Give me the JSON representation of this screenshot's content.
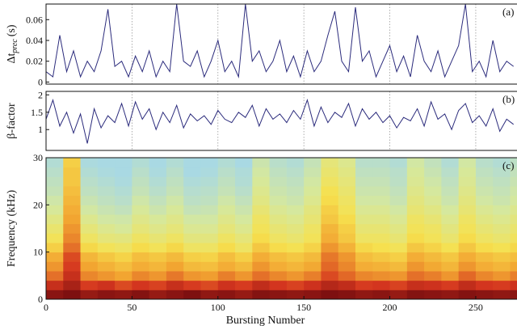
{
  "chart_data": [
    {
      "type": "line",
      "panel_label": "(a)",
      "y_label": "Δt",
      "y_label_sub": "prec",
      "y_label_unit": "(s)",
      "color": "#2b2b7c",
      "x": [
        0,
        4,
        8,
        12,
        16,
        20,
        24,
        28,
        32,
        36,
        40,
        44,
        48,
        52,
        56,
        60,
        64,
        68,
        72,
        76,
        80,
        84,
        88,
        92,
        96,
        100,
        104,
        108,
        112,
        116,
        120,
        124,
        128,
        132,
        136,
        140,
        144,
        148,
        152,
        156,
        160,
        164,
        168,
        172,
        176,
        180,
        184,
        188,
        192,
        196,
        200,
        204,
        208,
        212,
        216,
        220,
        224,
        228,
        232,
        236,
        240,
        244,
        248,
        252,
        256,
        260,
        264,
        268,
        272
      ],
      "values": [
        0.01,
        0.005,
        0.045,
        0.01,
        0.03,
        0.005,
        0.02,
        0.01,
        0.03,
        0.07,
        0.015,
        0.02,
        0.005,
        0.025,
        0.01,
        0.03,
        0.005,
        0.02,
        0.01,
        0.075,
        0.02,
        0.015,
        0.03,
        0.005,
        0.02,
        0.04,
        0.01,
        0.02,
        0.005,
        0.075,
        0.02,
        0.03,
        0.01,
        0.02,
        0.04,
        0.01,
        0.025,
        0.005,
        0.03,
        0.01,
        0.02,
        0.045,
        0.068,
        0.02,
        0.01,
        0.072,
        0.02,
        0.03,
        0.005,
        0.02,
        0.035,
        0.01,
        0.025,
        0.005,
        0.045,
        0.02,
        0.01,
        0.03,
        0.005,
        0.02,
        0.035,
        0.075,
        0.01,
        0.02,
        0.005,
        0.04,
        0.01,
        0.02,
        0.015
      ],
      "xlim": [
        0,
        274
      ],
      "ylim": [
        -0.002,
        0.075
      ],
      "yticks": [
        0,
        0.02,
        0.04,
        0.06
      ],
      "xticks": [
        50,
        100,
        150,
        200,
        250
      ],
      "x_grid": true
    },
    {
      "type": "line",
      "panel_label": "(b)",
      "y_label": "β-factor",
      "color": "#2b2b7c",
      "x": [
        0,
        4,
        8,
        12,
        16,
        20,
        24,
        28,
        32,
        36,
        40,
        44,
        48,
        52,
        56,
        60,
        64,
        68,
        72,
        76,
        80,
        84,
        88,
        92,
        96,
        100,
        104,
        108,
        112,
        116,
        120,
        124,
        128,
        132,
        136,
        140,
        144,
        148,
        152,
        156,
        160,
        164,
        168,
        172,
        176,
        180,
        184,
        188,
        192,
        196,
        200,
        204,
        208,
        212,
        216,
        220,
        224,
        228,
        232,
        236,
        240,
        244,
        248,
        252,
        256,
        260,
        264,
        268,
        272
      ],
      "values": [
        1.3,
        1.85,
        1.1,
        1.5,
        0.9,
        1.45,
        0.6,
        1.6,
        1.05,
        1.4,
        1.2,
        1.75,
        1.1,
        1.8,
        1.3,
        1.6,
        1.0,
        1.5,
        1.2,
        1.7,
        1.05,
        1.45,
        1.25,
        1.4,
        1.15,
        1.55,
        1.3,
        1.2,
        1.5,
        1.35,
        1.7,
        1.1,
        1.6,
        1.3,
        1.45,
        1.2,
        1.55,
        1.3,
        1.85,
        1.1,
        1.65,
        1.2,
        1.5,
        1.35,
        1.75,
        1.1,
        1.6,
        1.3,
        1.5,
        1.2,
        1.4,
        1.05,
        1.35,
        1.25,
        1.6,
        1.1,
        1.8,
        1.3,
        1.45,
        1.0,
        1.55,
        1.75,
        1.2,
        1.4,
        1.1,
        1.6,
        0.95,
        1.3,
        1.15
      ],
      "xlim": [
        0,
        274
      ],
      "ylim": [
        0.4,
        2.1
      ],
      "yticks": [
        1,
        1.5,
        2
      ],
      "xticks": [
        50,
        100,
        150,
        200,
        250
      ],
      "x_grid": true
    },
    {
      "type": "heatmap",
      "panel_label": "(c)",
      "y_label": "Frequency (kHz)",
      "x_label": "Bursting Number",
      "x_edges": [
        0,
        10,
        20,
        30,
        40,
        50,
        60,
        70,
        80,
        90,
        100,
        110,
        120,
        130,
        140,
        150,
        160,
        170,
        180,
        190,
        200,
        210,
        220,
        230,
        240,
        250,
        260,
        270,
        274
      ],
      "y_edges": [
        0,
        2,
        4,
        6,
        8,
        10,
        12,
        14,
        16,
        18,
        20,
        22,
        24,
        26,
        28,
        30
      ],
      "colormap": [
        "#a9d9e3",
        "#d6e89c",
        "#f6e14f",
        "#f2a431",
        "#d5361f",
        "#7e1010"
      ],
      "values": [
        [
          0.95,
          0.97,
          0.93,
          0.95,
          0.94,
          0.96,
          0.93,
          0.95,
          0.97,
          0.94,
          0.95,
          0.93,
          0.96,
          0.95,
          0.94,
          0.95,
          0.97,
          0.96,
          0.94,
          0.95,
          0.93,
          0.96,
          0.95,
          0.94,
          0.96,
          0.95,
          0.94,
          0.95
        ],
        [
          0.85,
          0.9,
          0.82,
          0.84,
          0.8,
          0.83,
          0.81,
          0.85,
          0.82,
          0.8,
          0.84,
          0.82,
          0.86,
          0.83,
          0.81,
          0.84,
          0.88,
          0.86,
          0.82,
          0.83,
          0.81,
          0.85,
          0.84,
          0.82,
          0.86,
          0.83,
          0.82,
          0.84
        ],
        [
          0.75,
          0.85,
          0.72,
          0.7,
          0.68,
          0.72,
          0.7,
          0.74,
          0.7,
          0.69,
          0.73,
          0.7,
          0.75,
          0.72,
          0.7,
          0.73,
          0.8,
          0.76,
          0.72,
          0.71,
          0.7,
          0.75,
          0.73,
          0.7,
          0.76,
          0.72,
          0.7,
          0.73
        ],
        [
          0.7,
          0.82,
          0.68,
          0.65,
          0.62,
          0.66,
          0.64,
          0.68,
          0.63,
          0.62,
          0.66,
          0.63,
          0.7,
          0.66,
          0.64,
          0.67,
          0.76,
          0.72,
          0.66,
          0.65,
          0.63,
          0.7,
          0.67,
          0.64,
          0.7,
          0.66,
          0.64,
          0.67
        ],
        [
          0.66,
          0.8,
          0.64,
          0.6,
          0.57,
          0.62,
          0.6,
          0.63,
          0.58,
          0.57,
          0.62,
          0.58,
          0.66,
          0.62,
          0.6,
          0.63,
          0.74,
          0.7,
          0.62,
          0.6,
          0.58,
          0.66,
          0.63,
          0.6,
          0.66,
          0.62,
          0.6,
          0.62
        ],
        [
          0.58,
          0.75,
          0.56,
          0.52,
          0.5,
          0.55,
          0.52,
          0.56,
          0.5,
          0.5,
          0.55,
          0.5,
          0.6,
          0.55,
          0.53,
          0.57,
          0.7,
          0.65,
          0.56,
          0.54,
          0.52,
          0.6,
          0.57,
          0.53,
          0.6,
          0.55,
          0.53,
          0.56
        ],
        [
          0.52,
          0.72,
          0.5,
          0.46,
          0.45,
          0.5,
          0.47,
          0.5,
          0.45,
          0.45,
          0.5,
          0.46,
          0.55,
          0.5,
          0.48,
          0.52,
          0.66,
          0.6,
          0.5,
          0.5,
          0.47,
          0.55,
          0.52,
          0.48,
          0.55,
          0.5,
          0.48,
          0.51
        ],
        [
          0.48,
          0.7,
          0.46,
          0.42,
          0.4,
          0.46,
          0.43,
          0.46,
          0.41,
          0.41,
          0.46,
          0.42,
          0.52,
          0.47,
          0.45,
          0.5,
          0.64,
          0.58,
          0.47,
          0.47,
          0.44,
          0.52,
          0.5,
          0.45,
          0.52,
          0.47,
          0.45,
          0.48
        ],
        [
          0.44,
          0.68,
          0.42,
          0.38,
          0.37,
          0.43,
          0.4,
          0.43,
          0.38,
          0.38,
          0.43,
          0.39,
          0.5,
          0.44,
          0.42,
          0.47,
          0.6,
          0.55,
          0.44,
          0.44,
          0.41,
          0.5,
          0.47,
          0.42,
          0.5,
          0.44,
          0.42,
          0.45
        ],
        [
          0.4,
          0.66,
          0.38,
          0.35,
          0.33,
          0.4,
          0.36,
          0.4,
          0.34,
          0.35,
          0.4,
          0.36,
          0.47,
          0.41,
          0.39,
          0.45,
          0.58,
          0.52,
          0.41,
          0.41,
          0.38,
          0.47,
          0.44,
          0.39,
          0.47,
          0.41,
          0.39,
          0.42
        ],
        [
          0.37,
          0.64,
          0.35,
          0.32,
          0.3,
          0.37,
          0.33,
          0.37,
          0.31,
          0.32,
          0.37,
          0.33,
          0.44,
          0.38,
          0.36,
          0.42,
          0.55,
          0.5,
          0.38,
          0.38,
          0.35,
          0.45,
          0.41,
          0.36,
          0.45,
          0.38,
          0.36,
          0.39
        ],
        [
          0.34,
          0.62,
          0.32,
          0.3,
          0.28,
          0.34,
          0.3,
          0.34,
          0.29,
          0.3,
          0.34,
          0.3,
          0.42,
          0.36,
          0.34,
          0.4,
          0.53,
          0.48,
          0.36,
          0.36,
          0.33,
          0.43,
          0.39,
          0.34,
          0.43,
          0.36,
          0.34,
          0.37
        ],
        [
          0.32,
          0.6,
          0.3,
          0.28,
          0.26,
          0.32,
          0.28,
          0.32,
          0.27,
          0.28,
          0.32,
          0.28,
          0.4,
          0.34,
          0.32,
          0.38,
          0.5,
          0.46,
          0.34,
          0.34,
          0.31,
          0.41,
          0.37,
          0.32,
          0.41,
          0.34,
          0.32,
          0.35
        ],
        [
          0.3,
          0.6,
          0.28,
          0.26,
          0.25,
          0.3,
          0.26,
          0.3,
          0.25,
          0.26,
          0.3,
          0.27,
          0.38,
          0.32,
          0.3,
          0.36,
          0.48,
          0.44,
          0.32,
          0.32,
          0.3,
          0.4,
          0.35,
          0.3,
          0.4,
          0.32,
          0.3,
          0.33
        ],
        [
          0.28,
          0.58,
          0.26,
          0.25,
          0.24,
          0.28,
          0.25,
          0.28,
          0.24,
          0.25,
          0.28,
          0.25,
          0.36,
          0.3,
          0.28,
          0.34,
          0.46,
          0.42,
          0.3,
          0.3,
          0.28,
          0.38,
          0.33,
          0.28,
          0.38,
          0.3,
          0.28,
          0.31
        ]
      ],
      "xlim": [
        0,
        274
      ],
      "ylim": [
        0,
        30
      ],
      "yticks": [
        0,
        10,
        20,
        30
      ],
      "xticks": [
        0,
        50,
        100,
        150,
        200,
        250
      ]
    }
  ]
}
